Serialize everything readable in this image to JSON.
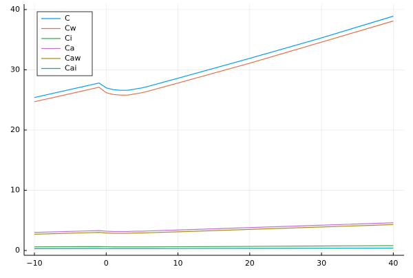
{
  "chart_data": {
    "type": "line",
    "x": [
      -10,
      -1,
      0,
      1,
      2,
      3,
      4,
      5,
      6,
      10,
      20,
      30,
      40
    ],
    "series": [
      {
        "name": "C",
        "color": "#009af9",
        "values": [
          25.4,
          27.8,
          27.0,
          26.7,
          26.6,
          26.6,
          26.8,
          27.0,
          27.3,
          28.6,
          31.9,
          35.3,
          38.9
        ]
      },
      {
        "name": "Cw",
        "color": "#e26f46",
        "values": [
          24.7,
          27.1,
          26.2,
          25.9,
          25.8,
          25.8,
          26.0,
          26.2,
          26.5,
          27.8,
          31.1,
          34.6,
          38.1
        ]
      },
      {
        "name": "Ci",
        "color": "#3da44d",
        "values": [
          0.6,
          0.65,
          0.62,
          0.6,
          0.6,
          0.6,
          0.6,
          0.6,
          0.6,
          0.62,
          0.68,
          0.74,
          0.8
        ]
      },
      {
        "name": "Ca",
        "color": "#c271d2",
        "values": [
          3.0,
          3.3,
          3.2,
          3.15,
          3.15,
          3.15,
          3.2,
          3.2,
          3.25,
          3.4,
          3.8,
          4.2,
          4.6
        ]
      },
      {
        "name": "Caw",
        "color": "#ac8e18",
        "values": [
          2.7,
          3.0,
          2.9,
          2.85,
          2.85,
          2.85,
          2.9,
          2.9,
          2.95,
          3.1,
          3.5,
          3.9,
          4.3
        ]
      },
      {
        "name": "Cai",
        "color": "#00a9ad",
        "values": [
          0.3,
          0.33,
          0.32,
          0.31,
          0.31,
          0.31,
          0.31,
          0.31,
          0.31,
          0.32,
          0.34,
          0.37,
          0.4
        ]
      }
    ],
    "xlim": [
      -11.44,
      41.5
    ],
    "ylim": [
      -0.8,
      40.9
    ],
    "xticks": [
      {
        "value": -10,
        "label": "−10"
      },
      0,
      10,
      20,
      30,
      40
    ],
    "yticks": [
      0,
      10,
      20,
      30,
      40
    ],
    "grid": true,
    "legend": "top-left"
  }
}
